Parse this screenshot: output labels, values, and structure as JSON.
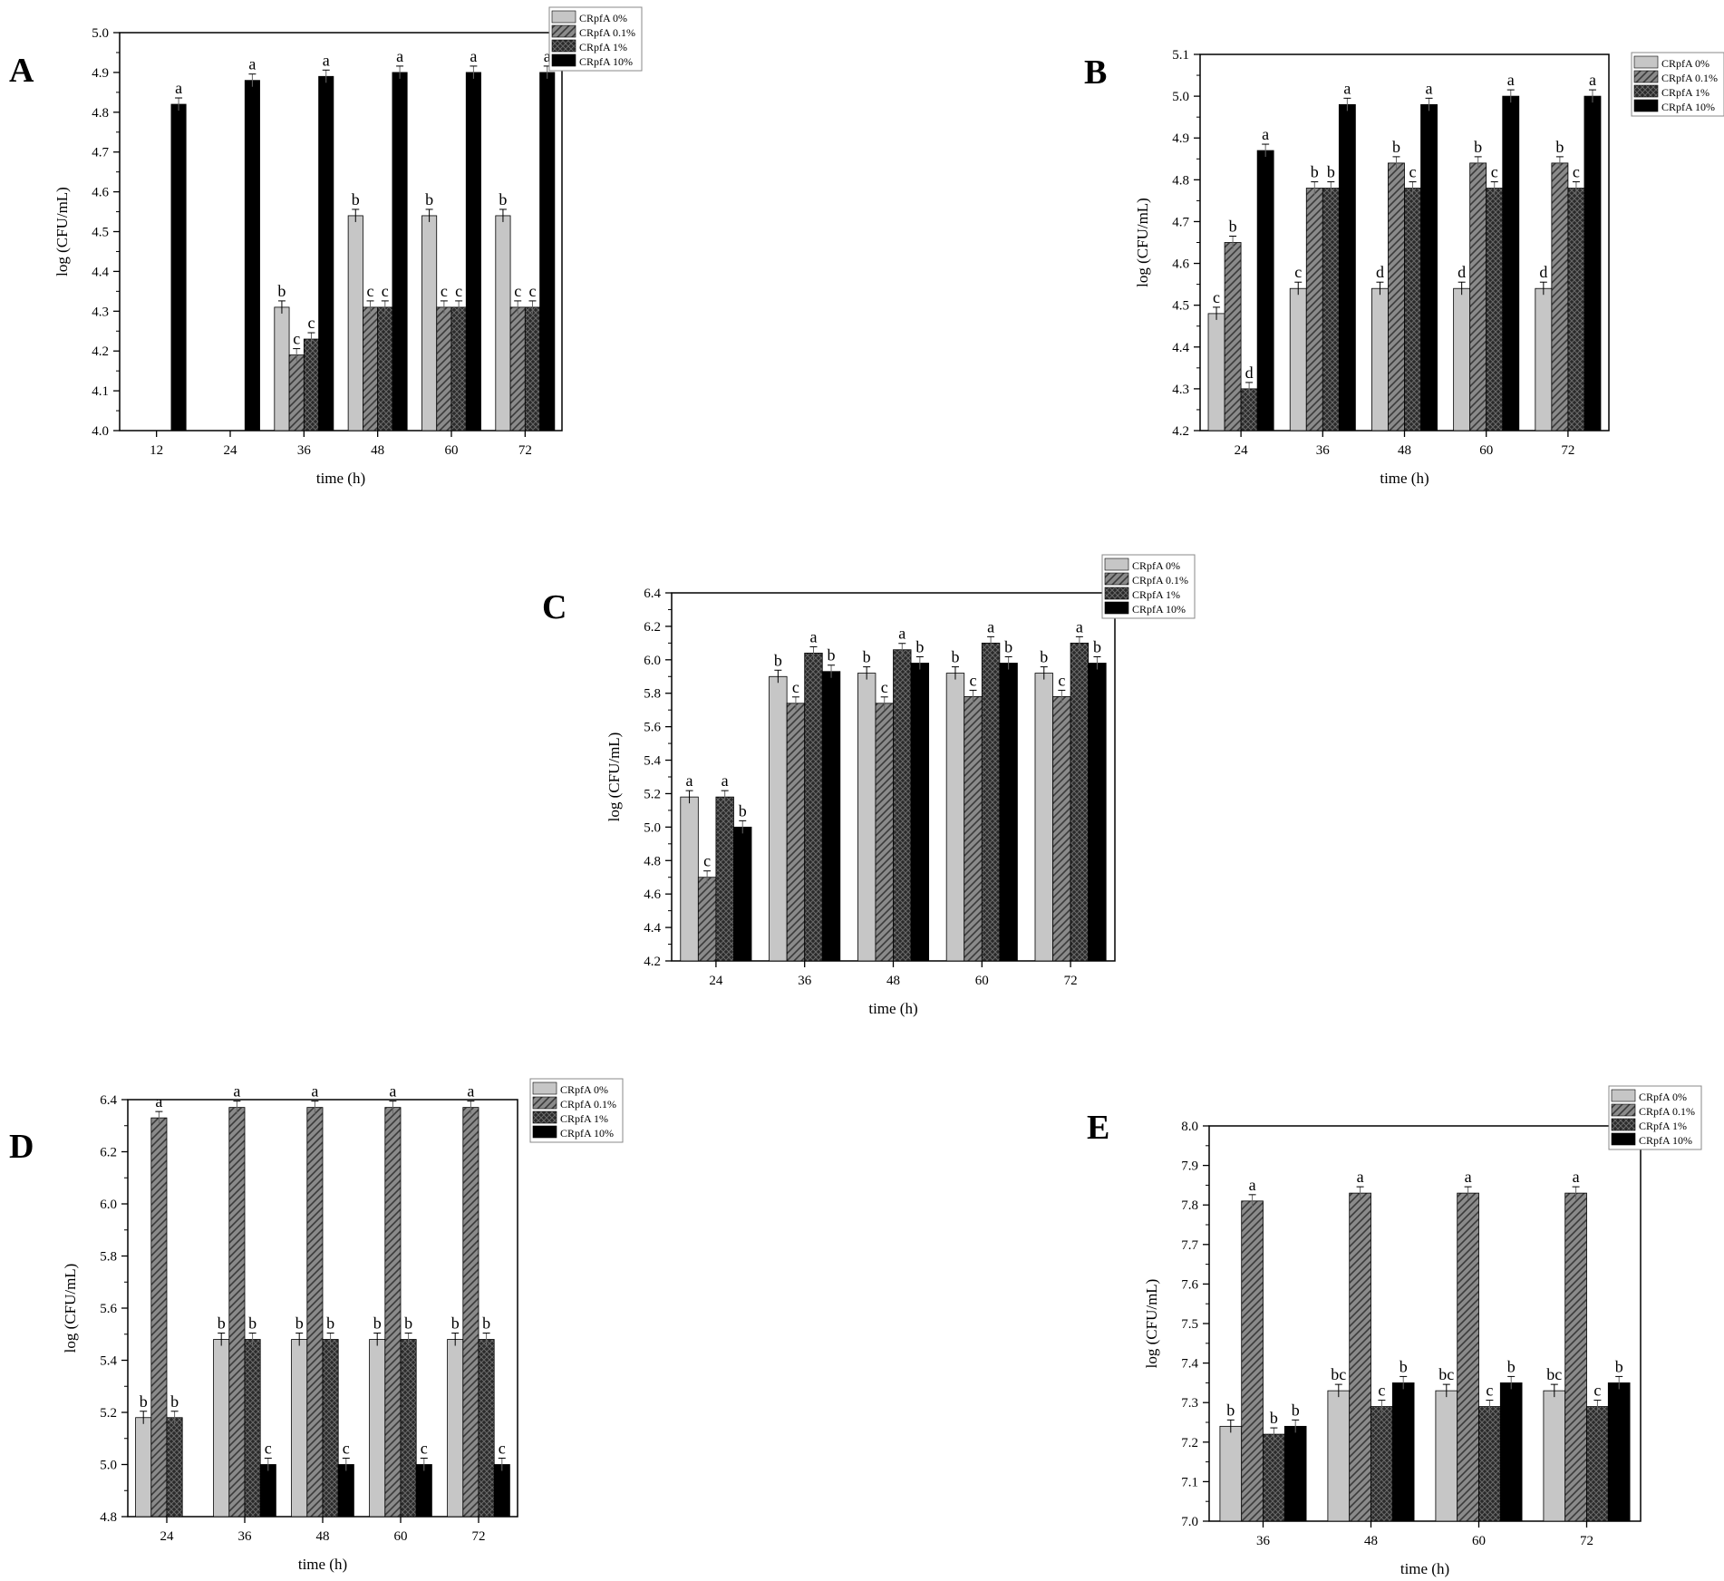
{
  "colors": {
    "CRpfA 0%": "#c6c6c6",
    "CRpfA 0.1%": "#828282",
    "CRpfA 1%": "#383838",
    "CRpfA 10%": "#000000"
  },
  "chart_data": [
    {
      "id": "A",
      "type": "bar",
      "panel_label": "A",
      "xlabel": "time (h)",
      "ylabel": "log (CFU/mL)",
      "ylim": [
        4.0,
        5.0
      ],
      "yticks": [
        "4.0",
        "4.1",
        "4.2",
        "4.3",
        "4.4",
        "4.5",
        "4.6",
        "4.7",
        "4.8",
        "4.9",
        "5.0"
      ],
      "categories": [
        "12",
        "24",
        "36",
        "48",
        "60",
        "72"
      ],
      "series": [
        {
          "name": "CRpfA 0%",
          "values": [
            null,
            null,
            4.31,
            4.54,
            4.54,
            4.54
          ],
          "labels": [
            "",
            "",
            "b",
            "b",
            "b",
            "b"
          ]
        },
        {
          "name": "CRpfA 0.1%",
          "values": [
            null,
            null,
            4.19,
            4.31,
            4.31,
            4.31
          ],
          "labels": [
            "",
            "",
            "c",
            "c",
            "c",
            "c"
          ]
        },
        {
          "name": "CRpfA 1%",
          "values": [
            null,
            null,
            4.23,
            4.31,
            4.31,
            4.31
          ],
          "labels": [
            "",
            "",
            "c",
            "c",
            "c",
            "c"
          ]
        },
        {
          "name": "CRpfA 10%",
          "values": [
            4.82,
            4.88,
            4.89,
            4.9,
            4.9,
            4.9
          ],
          "labels": [
            "a",
            "a",
            "a",
            "a",
            "a",
            "a"
          ]
        }
      ],
      "legend": [
        "CRpfA 0%",
        "CRpfA 0.1%",
        "CRpfA 1%",
        "CRpfA 10%"
      ]
    },
    {
      "id": "B",
      "type": "bar",
      "panel_label": "B",
      "xlabel": "time (h)",
      "ylabel": "log (CFU/mL)",
      "ylim": [
        4.2,
        5.1
      ],
      "yticks": [
        "4.2",
        "4.3",
        "4.4",
        "4.5",
        "4.6",
        "4.7",
        "4.8",
        "4.9",
        "5.0",
        "5.1"
      ],
      "categories": [
        "24",
        "36",
        "48",
        "60",
        "72"
      ],
      "series": [
        {
          "name": "CRpfA 0%",
          "values": [
            4.48,
            4.54,
            4.54,
            4.54,
            4.54
          ],
          "labels": [
            "c",
            "c",
            "d",
            "d",
            "d"
          ]
        },
        {
          "name": "CRpfA 0.1%",
          "values": [
            4.65,
            4.78,
            4.84,
            4.84,
            4.84
          ],
          "labels": [
            "b",
            "b",
            "b",
            "b",
            "b"
          ]
        },
        {
          "name": "CRpfA 1%",
          "values": [
            4.3,
            4.78,
            4.78,
            4.78,
            4.78
          ],
          "labels": [
            "d",
            "b",
            "c",
            "c",
            "c"
          ]
        },
        {
          "name": "CRpfA 10%",
          "values": [
            4.87,
            4.98,
            4.98,
            5.0,
            5.0
          ],
          "labels": [
            "a",
            "a",
            "a",
            "a",
            "a"
          ]
        }
      ],
      "legend": [
        "CRpfA 0%",
        "CRpfA 0.1%",
        "CRpfA 1%",
        "CRpfA 10%"
      ]
    },
    {
      "id": "C",
      "type": "bar",
      "panel_label": "C",
      "xlabel": "time (h)",
      "ylabel": "log (CFU/mL)",
      "ylim": [
        4.2,
        6.4
      ],
      "yticks": [
        "4.2",
        "4.4",
        "4.6",
        "4.8",
        "5.0",
        "5.2",
        "5.4",
        "5.6",
        "5.8",
        "6.0",
        "6.2",
        "6.4"
      ],
      "categories": [
        "24",
        "36",
        "48",
        "60",
        "72"
      ],
      "series": [
        {
          "name": "CRpfA 0%",
          "values": [
            5.18,
            5.9,
            5.92,
            5.92,
            5.92
          ],
          "labels": [
            "a",
            "b",
            "b",
            "b",
            "b"
          ]
        },
        {
          "name": "CRpfA 0.1%",
          "values": [
            4.7,
            5.74,
            5.74,
            5.78,
            5.78
          ],
          "labels": [
            "c",
            "c",
            "c",
            "c",
            "c"
          ]
        },
        {
          "name": "CRpfA 1%",
          "values": [
            5.18,
            6.04,
            6.06,
            6.1,
            6.1
          ],
          "labels": [
            "a",
            "a",
            "a",
            "a",
            "a"
          ]
        },
        {
          "name": "CRpfA 10%",
          "values": [
            5.0,
            5.93,
            5.98,
            5.98,
            5.98
          ],
          "labels": [
            "b",
            "b",
            "b",
            "b",
            "b"
          ]
        }
      ],
      "legend": [
        "CRpfA 0%",
        "CRpfA 0.1%",
        "CRpfA 1%",
        "CRpfA 10%"
      ]
    },
    {
      "id": "D",
      "type": "bar",
      "panel_label": "D",
      "xlabel": "time (h)",
      "ylabel": "log (CFU/mL)",
      "ylim": [
        4.8,
        6.4
      ],
      "yticks": [
        "4.8",
        "5.0",
        "5.2",
        "5.4",
        "5.6",
        "5.8",
        "6.0",
        "6.2",
        "6.4"
      ],
      "categories": [
        "24",
        "36",
        "48",
        "60",
        "72"
      ],
      "series": [
        {
          "name": "CRpfA 0%",
          "values": [
            5.18,
            5.48,
            5.48,
            5.48,
            5.48
          ],
          "labels": [
            "b",
            "b",
            "b",
            "b",
            "b"
          ]
        },
        {
          "name": "CRpfA 0.1%",
          "values": [
            6.33,
            6.37,
            6.37,
            6.37,
            6.37
          ],
          "labels": [
            "a",
            "a",
            "a",
            "a",
            "a"
          ]
        },
        {
          "name": "CRpfA 1%",
          "values": [
            5.18,
            5.48,
            5.48,
            5.48,
            5.48
          ],
          "labels": [
            "b",
            "b",
            "b",
            "b",
            "b"
          ]
        },
        {
          "name": "CRpfA 10%",
          "values": [
            null,
            5.0,
            5.0,
            5.0,
            5.0
          ],
          "labels": [
            "",
            "c",
            "c",
            "c",
            "c"
          ]
        }
      ],
      "legend": [
        "CRpfA 0%",
        "CRpfA 0.1%",
        "CRpfA 1%",
        "CRpfA 10%"
      ]
    },
    {
      "id": "E",
      "type": "bar",
      "panel_label": "E",
      "xlabel": "time (h)",
      "ylabel": "log (CFU/mL)",
      "ylim": [
        7.0,
        8.0
      ],
      "yticks": [
        "7.0",
        "7.1",
        "7.2",
        "7.3",
        "7.4",
        "7.5",
        "7.6",
        "7.7",
        "7.8",
        "7.9",
        "8.0"
      ],
      "categories": [
        "36",
        "48",
        "60",
        "72"
      ],
      "series": [
        {
          "name": "CRpfA 0%",
          "values": [
            7.24,
            7.33,
            7.33,
            7.33
          ],
          "labels": [
            "b",
            "bc",
            "bc",
            "bc"
          ]
        },
        {
          "name": "CRpfA 0.1%",
          "values": [
            7.81,
            7.83,
            7.83,
            7.83
          ],
          "labels": [
            "a",
            "a",
            "a",
            "a"
          ]
        },
        {
          "name": "CRpfA 1%",
          "values": [
            7.22,
            7.29,
            7.29,
            7.29
          ],
          "labels": [
            "b",
            "c",
            "c",
            "c"
          ]
        },
        {
          "name": "CRpfA 10%",
          "values": [
            7.24,
            7.35,
            7.35,
            7.35
          ],
          "labels": [
            "b",
            "b",
            "b",
            "b"
          ]
        }
      ],
      "legend": [
        "CRpfA 0%",
        "CRpfA 0.1%",
        "CRpfA 1%",
        "CRpfA 10%"
      ]
    }
  ]
}
